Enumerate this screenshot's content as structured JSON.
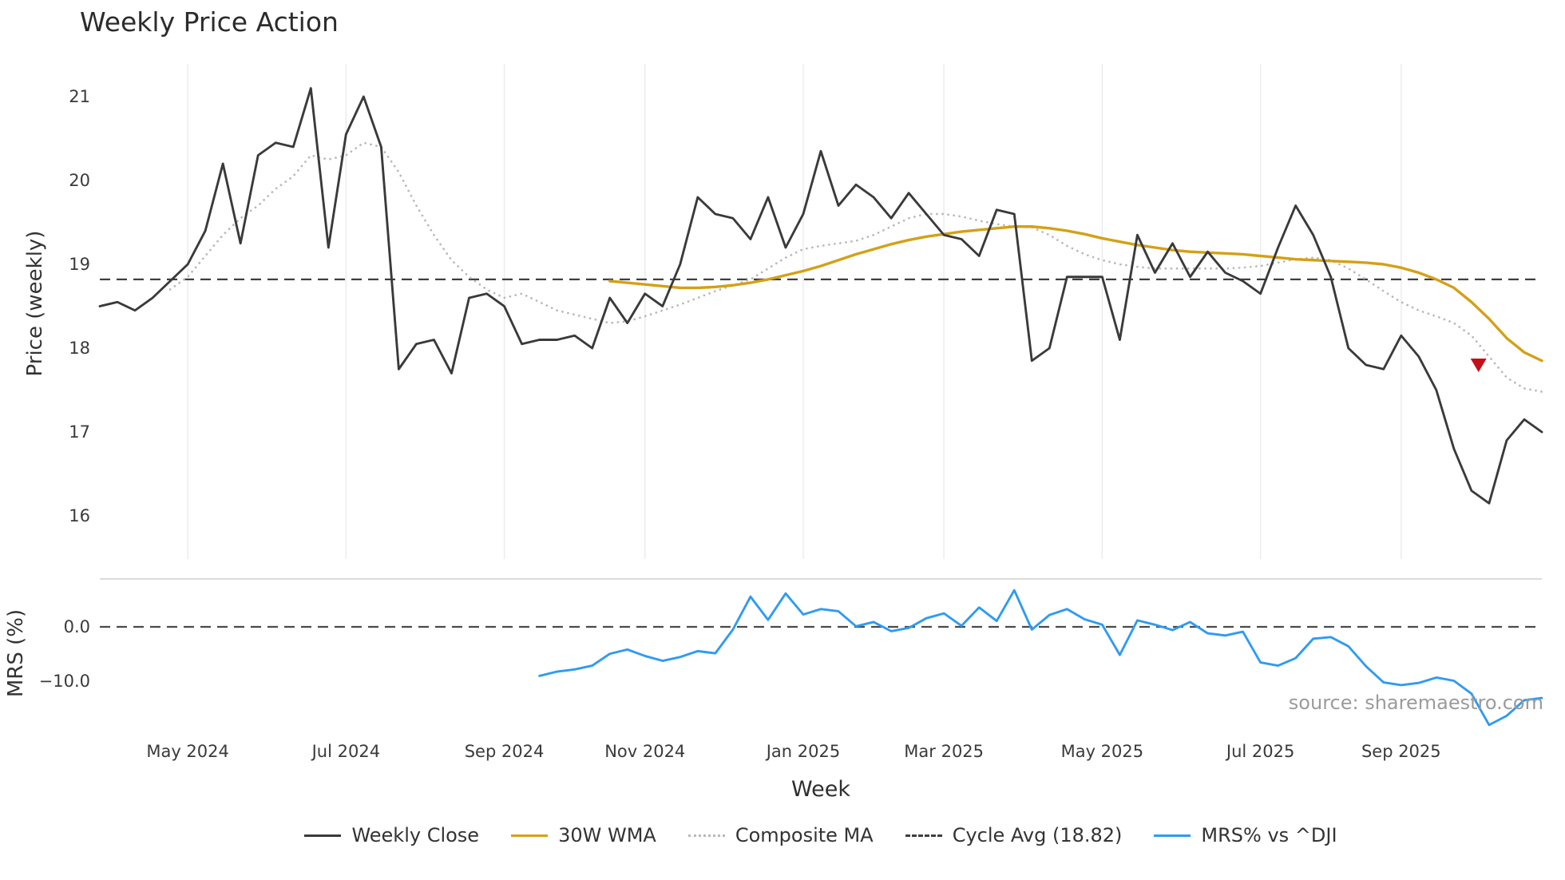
{
  "title": "Weekly Price Action",
  "source_note": "source: sharemaestro.com",
  "legend": [
    {
      "label": "Weekly Close",
      "color": "#3a3a3a",
      "style": "solid"
    },
    {
      "label": "30W WMA",
      "color": "#d4a017",
      "style": "solid"
    },
    {
      "label": "Composite MA",
      "color": "#b8b8b8",
      "style": "dotted"
    },
    {
      "label": "Cycle Avg (18.82)",
      "color": "#3f3f3f",
      "style": "dashed"
    },
    {
      "label": "MRS% vs ^DJI",
      "color": "#2f9bf2",
      "style": "solid"
    }
  ],
  "chart_data": {
    "type": "line",
    "title": "Weekly Price Action",
    "xlabel": "Week",
    "x_unit": "week index (weekly bars, Apr 2024 - Oct 2025)",
    "x_range": [
      0,
      82
    ],
    "grid": "vertical-only",
    "legend_position": "bottom-center",
    "x_ticks": [
      {
        "week": 5,
        "label": "May 2024"
      },
      {
        "week": 14,
        "label": "Jul 2024"
      },
      {
        "week": 23,
        "label": "Sep 2024"
      },
      {
        "week": 31,
        "label": "Nov 2024"
      },
      {
        "week": 40,
        "label": "Jan 2025"
      },
      {
        "week": 48,
        "label": "Mar 2025"
      },
      {
        "week": 57,
        "label": "May 2025"
      },
      {
        "week": 66,
        "label": "Jul 2025"
      },
      {
        "week": 74,
        "label": "Sep 2025"
      }
    ],
    "panels": [
      {
        "name": "price",
        "ylabel": "Price (weekly)",
        "ylim": [
          15.5,
          21.4
        ],
        "yticks": [
          {
            "value": 16,
            "label": "16"
          },
          {
            "value": 17,
            "label": "17"
          },
          {
            "value": 18,
            "label": "18"
          },
          {
            "value": 19,
            "label": "19"
          },
          {
            "value": 20,
            "label": "20"
          },
          {
            "value": 21,
            "label": "21"
          }
        ],
        "hlines": [
          {
            "name": "cycle-avg",
            "label": "Cycle Avg (18.82)",
            "value": 18.82,
            "style": "dashed",
            "color": "#3f3f3f"
          }
        ],
        "markers": [
          {
            "name": "sell-signal",
            "shape": "triangle-down",
            "week": 78.4,
            "value": 17.8,
            "color": "#c41018"
          }
        ],
        "series": [
          {
            "name": "Composite MA",
            "color": "#b8b8b8",
            "style": "dotted",
            "width": 2.7,
            "start_week": 4,
            "values": [
              18.7,
              18.85,
              19.1,
              19.35,
              19.55,
              19.7,
              19.9,
              20.05,
              20.3,
              20.25,
              20.3,
              20.45,
              20.4,
              20.1,
              19.7,
              19.35,
              19.05,
              18.85,
              18.7,
              18.6,
              18.65,
              18.55,
              18.45,
              18.4,
              18.35,
              18.3,
              18.32,
              18.38,
              18.45,
              18.52,
              18.6,
              18.68,
              18.75,
              18.82,
              18.95,
              19.08,
              19.18,
              19.22,
              19.25,
              19.28,
              19.35,
              19.45,
              19.55,
              19.6,
              19.6,
              19.57,
              19.52,
              19.48,
              19.45,
              19.44,
              19.35,
              19.22,
              19.12,
              19.05,
              19.0,
              18.97,
              18.95,
              18.95,
              18.95,
              18.95,
              18.95,
              18.96,
              18.98,
              19.02,
              19.06,
              19.08,
              19.05,
              18.95,
              18.82,
              18.68,
              18.55,
              18.45,
              18.38,
              18.3,
              18.15,
              17.9,
              17.65,
              17.52,
              17.48
            ]
          },
          {
            "name": "30W WMA",
            "color": "#d4a017",
            "style": "solid",
            "width": 3.4,
            "start_week": 29,
            "values": [
              18.8,
              18.78,
              18.76,
              18.74,
              18.72,
              18.72,
              18.73,
              18.75,
              18.78,
              18.82,
              18.87,
              18.92,
              18.98,
              19.05,
              19.12,
              19.18,
              19.24,
              19.29,
              19.33,
              19.36,
              19.39,
              19.41,
              19.43,
              19.45,
              19.45,
              19.43,
              19.4,
              19.36,
              19.31,
              19.27,
              19.23,
              19.2,
              19.17,
              19.15,
              19.14,
              19.13,
              19.12,
              19.1,
              19.08,
              19.06,
              19.05,
              19.04,
              19.03,
              19.02,
              19.0,
              18.96,
              18.9,
              18.82,
              18.72,
              18.55,
              18.35,
              18.12,
              17.95,
              17.85
            ]
          },
          {
            "name": "Weekly Close",
            "color": "#3a3a3a",
            "style": "solid",
            "width": 2.9,
            "start_week": 0,
            "values": [
              18.5,
              18.55,
              18.45,
              18.6,
              18.8,
              19.0,
              19.4,
              20.2,
              19.25,
              20.3,
              20.45,
              20.4,
              21.1,
              19.2,
              20.55,
              21.0,
              20.4,
              17.75,
              18.05,
              18.1,
              17.7,
              18.6,
              18.65,
              18.5,
              18.05,
              18.1,
              18.1,
              18.15,
              18.0,
              18.6,
              18.3,
              18.65,
              18.5,
              19.0,
              19.8,
              19.6,
              19.55,
              19.3,
              19.8,
              19.2,
              19.6,
              20.35,
              19.7,
              19.95,
              19.8,
              19.55,
              19.85,
              19.6,
              19.35,
              19.3,
              19.1,
              19.65,
              19.6,
              17.85,
              18.0,
              18.85,
              18.85,
              18.85,
              18.1,
              19.35,
              18.9,
              19.25,
              18.85,
              19.15,
              18.9,
              18.8,
              18.65,
              19.2,
              19.7,
              19.35,
              18.85,
              18.0,
              17.8,
              17.75,
              18.15,
              17.9,
              17.5,
              16.8,
              16.3,
              16.15,
              16.9,
              17.15,
              17.0
            ]
          }
        ]
      },
      {
        "name": "mrs",
        "ylabel": "MRS (%)",
        "ylim": [
          -19,
          9
        ],
        "yticks": [
          {
            "value": 0,
            "label": "0.0"
          },
          {
            "value": -10,
            "label": "−10.0"
          }
        ],
        "hlines": [
          {
            "name": "zero-line",
            "value": 0,
            "style": "dashed",
            "color": "#4a4a4a"
          }
        ],
        "markers": [],
        "series": [
          {
            "name": "MRS% vs ^DJI",
            "color": "#2f9bf2",
            "style": "solid",
            "width": 2.9,
            "start_week": 25,
            "values": [
              -9.1,
              -8.3,
              -7.9,
              -7.2,
              -5.0,
              -4.2,
              -5.4,
              -6.3,
              -5.6,
              -4.5,
              -4.9,
              -0.5,
              5.6,
              1.3,
              6.2,
              2.3,
              3.3,
              2.9,
              0.1,
              0.9,
              -0.8,
              -0.2,
              1.6,
              2.5,
              0.2,
              3.6,
              1.1,
              6.8,
              -0.5,
              2.2,
              3.3,
              1.4,
              0.4,
              -5.2,
              1.2,
              0.4,
              -0.6,
              0.9,
              -1.2,
              -1.6,
              -0.9,
              -6.6,
              -7.2,
              -5.8,
              -2.2,
              -1.9,
              -3.6,
              -7.3,
              -10.3,
              -10.8,
              -10.4,
              -9.4,
              -10.0,
              -12.4,
              -18.2,
              -16.5,
              -13.6,
              -13.2
            ]
          }
        ]
      }
    ]
  }
}
